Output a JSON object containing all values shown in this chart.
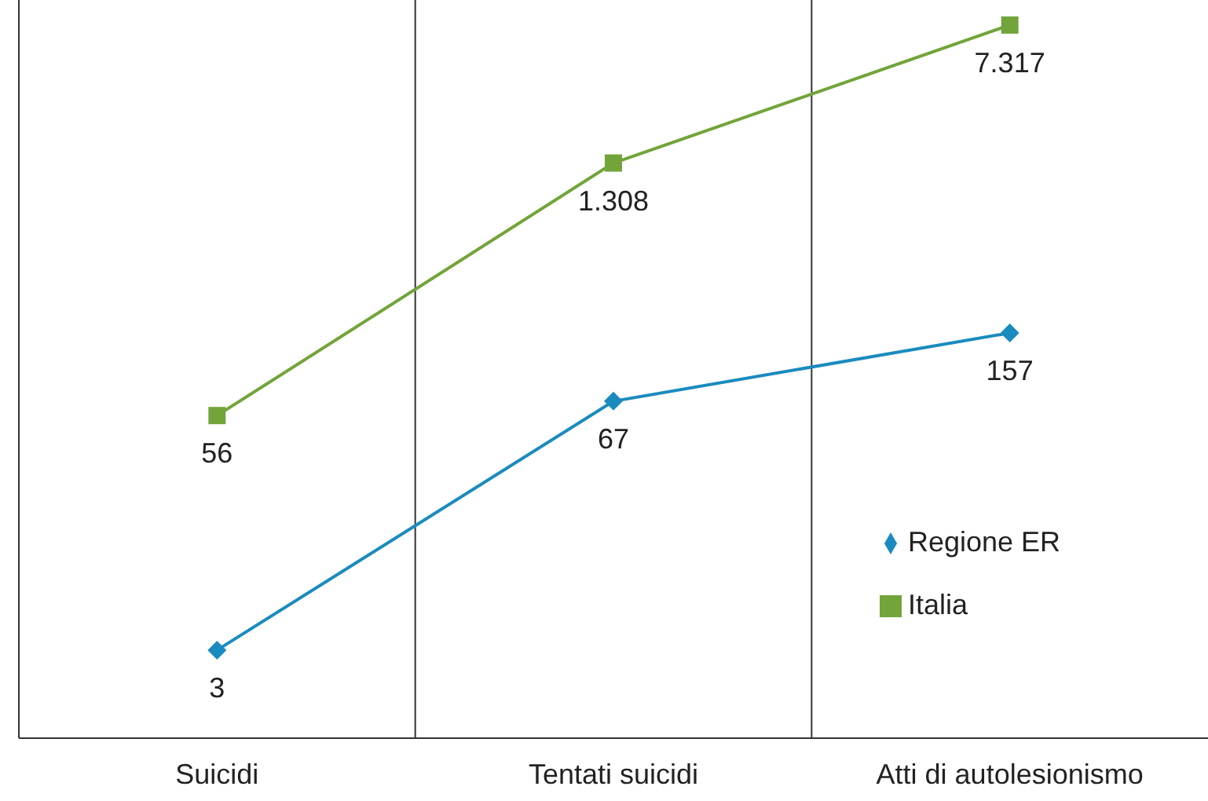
{
  "chart_data": {
    "type": "line",
    "categories": [
      "Suicidi",
      "Tentati suicidi",
      "Atti di autolesionismo"
    ],
    "log": true,
    "ylim": [
      1,
      10000
    ],
    "tick_labels": "x",
    "grid": "x",
    "legend": "bottom right",
    "data_labels": true,
    "series": [
      {
        "name": "Regione ER",
        "color": "#1a8bbf",
        "marker": "diamond",
        "values": [
          3,
          67,
          157
        ],
        "value_labels": [
          "3",
          "67",
          "157"
        ]
      },
      {
        "name": "Italia",
        "color": "#72a43a",
        "marker": "square",
        "values": [
          56,
          1308,
          7317
        ],
        "value_labels": [
          "56",
          "1.308",
          "7.317"
        ]
      }
    ]
  }
}
